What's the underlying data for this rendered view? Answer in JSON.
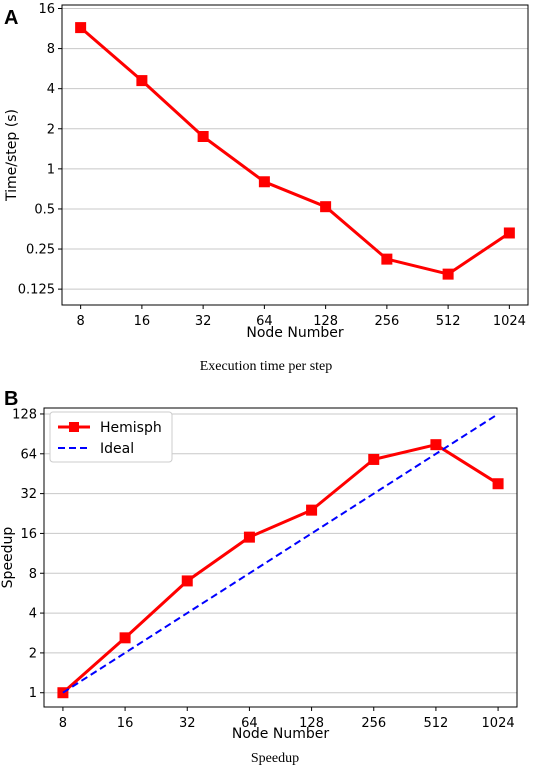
{
  "chart_data": [
    {
      "panel": "A",
      "type": "line",
      "scale": {
        "x": "log2",
        "y": "log2"
      },
      "xlabel": "Node Number",
      "ylabel": "Time/step (s)",
      "caption": "Execution time per step",
      "x_ticks": [
        "8",
        "16",
        "32",
        "64",
        "128",
        "256",
        "512",
        "1024"
      ],
      "y_ticks": [
        "0.125",
        "0.25",
        "0.5",
        "1",
        "2",
        "4",
        "8",
        "16"
      ],
      "xlim": [
        8,
        1024
      ],
      "ylim": [
        0.095,
        17
      ],
      "grid": "horizontal",
      "series": [
        {
          "name": "",
          "color": "#ff0000",
          "marker": "square",
          "style": "solid",
          "x": [
            8,
            16,
            32,
            64,
            128,
            256,
            512,
            1024
          ],
          "y": [
            11.5,
            4.6,
            1.75,
            0.8,
            0.52,
            0.21,
            0.162,
            0.33
          ]
        }
      ]
    },
    {
      "panel": "B",
      "type": "line",
      "scale": {
        "x": "log2",
        "y": "log2"
      },
      "xlabel": "Node Number",
      "ylabel": "Speedup",
      "caption": "Speedup",
      "x_ticks": [
        "8",
        "16",
        "32",
        "64",
        "128",
        "256",
        "512",
        "1024"
      ],
      "y_ticks": [
        "1",
        "2",
        "4",
        "8",
        "16",
        "32",
        "64",
        "128"
      ],
      "xlim": [
        8,
        1024
      ],
      "ylim": [
        0.78,
        142
      ],
      "grid": "horizontal",
      "legend": "top-left",
      "series": [
        {
          "name": "Hemisph",
          "color": "#ff0000",
          "marker": "square",
          "style": "solid",
          "x": [
            8,
            16,
            32,
            64,
            128,
            256,
            512,
            1024
          ],
          "y": [
            1,
            2.6,
            7,
            15,
            24,
            58,
            75,
            38
          ]
        },
        {
          "name": "Ideal",
          "color": "#0000ff",
          "marker": "none",
          "style": "dashed",
          "x": [
            8,
            1024
          ],
          "y": [
            1,
            128
          ]
        }
      ]
    }
  ]
}
